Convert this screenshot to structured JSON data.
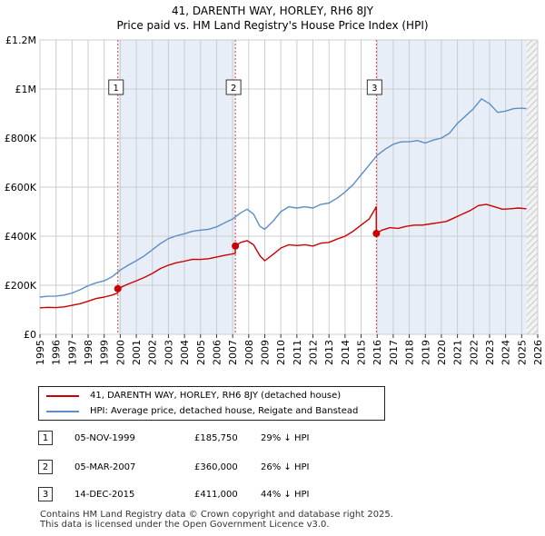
{
  "header": {
    "title_line1": "41, DARENTH WAY, HORLEY, RH6 8JY",
    "title_line2": "Price paid vs. HM Land Registry's House Price Index (HPI)"
  },
  "colors": {
    "property": "#cc0000",
    "hpi": "#5b8ec7",
    "shade": "#e8eef8",
    "grid": "#cccccc",
    "marker_line": "#dd4444"
  },
  "legend": {
    "property_label": "41, DARENTH WAY, HORLEY, RH6 8JY (detached house)",
    "hpi_label": "HPI: Average price, detached house, Reigate and Banstead"
  },
  "transactions": [
    {
      "num": "1",
      "date": "05-NOV-1999",
      "price": "£185,750",
      "hpi_diff": "29% ↓ HPI"
    },
    {
      "num": "2",
      "date": "05-MAR-2007",
      "price": "£360,000",
      "hpi_diff": "26% ↓ HPI"
    },
    {
      "num": "3",
      "date": "14-DEC-2015",
      "price": "£411,000",
      "hpi_diff": "44% ↓ HPI"
    }
  ],
  "footer": {
    "line1": "Contains HM Land Registry data © Crown copyright and database right 2025.",
    "line2": "This data is licensed under the Open Government Licence v3.0."
  },
  "chart_data": {
    "type": "line",
    "title": "Price paid vs. HM Land Registry's House Price Index (HPI)",
    "xlabel": "",
    "ylabel": "",
    "xlim": [
      1995,
      2026
    ],
    "ylim": [
      0,
      1200000
    ],
    "xticks": [
      "1995",
      "1996",
      "1997",
      "1998",
      "1999",
      "2000",
      "2001",
      "2002",
      "2003",
      "2004",
      "2005",
      "2006",
      "2007",
      "2008",
      "2009",
      "2010",
      "2011",
      "2012",
      "2013",
      "2014",
      "2015",
      "2016",
      "2017",
      "2018",
      "2019",
      "2020",
      "2021",
      "2022",
      "2023",
      "2024",
      "2025",
      "2026"
    ],
    "yticks": [
      {
        "value": 0,
        "label": "£0"
      },
      {
        "value": 200000,
        "label": "£200K"
      },
      {
        "value": 400000,
        "label": "£400K"
      },
      {
        "value": 600000,
        "label": "£600K"
      },
      {
        "value": 800000,
        "label": "£800K"
      },
      {
        "value": 1000000,
        "label": "£1M"
      },
      {
        "value": 1200000,
        "label": "£1.2M"
      }
    ],
    "grid": true,
    "shaded_periods": [
      [
        1999.85,
        2007.17
      ],
      [
        2015.95,
        2025.3
      ]
    ],
    "hatched_from": 2025.3,
    "sales": [
      {
        "label": "1",
        "x": 1999.85,
        "price": 185750
      },
      {
        "label": "2",
        "x": 2007.17,
        "price": 360000
      },
      {
        "label": "3",
        "x": 2015.95,
        "price": 411000
      }
    ],
    "series": [
      {
        "name": "41, DARENTH WAY, HORLEY, RH6 8JY (detached house)",
        "points": [
          [
            1995.0,
            108000
          ],
          [
            1995.5,
            110000
          ],
          [
            1996.0,
            109000
          ],
          [
            1996.5,
            112000
          ],
          [
            1997.0,
            118000
          ],
          [
            1997.5,
            125000
          ],
          [
            1998.0,
            135000
          ],
          [
            1998.5,
            146000
          ],
          [
            1999.0,
            152000
          ],
          [
            1999.5,
            160000
          ],
          [
            1999.84,
            168000
          ],
          [
            1999.85,
            185750
          ],
          [
            2000.5,
            205000
          ],
          [
            2001.0,
            218000
          ],
          [
            2001.5,
            232000
          ],
          [
            2002.0,
            248000
          ],
          [
            2002.5,
            268000
          ],
          [
            2003.0,
            282000
          ],
          [
            2003.5,
            292000
          ],
          [
            2004.0,
            298000
          ],
          [
            2004.5,
            306000
          ],
          [
            2005.0,
            305000
          ],
          [
            2005.5,
            308000
          ],
          [
            2006.0,
            315000
          ],
          [
            2006.5,
            322000
          ],
          [
            2007.16,
            330000
          ],
          [
            2007.17,
            360000
          ],
          [
            2007.5,
            375000
          ],
          [
            2007.9,
            382000
          ],
          [
            2008.3,
            365000
          ],
          [
            2008.7,
            320000
          ],
          [
            2009.0,
            300000
          ],
          [
            2009.5,
            325000
          ],
          [
            2010.0,
            352000
          ],
          [
            2010.5,
            365000
          ],
          [
            2011.0,
            362000
          ],
          [
            2011.5,
            365000
          ],
          [
            2012.0,
            360000
          ],
          [
            2012.5,
            372000
          ],
          [
            2013.0,
            375000
          ],
          [
            2013.5,
            388000
          ],
          [
            2014.0,
            400000
          ],
          [
            2014.5,
            420000
          ],
          [
            2015.0,
            445000
          ],
          [
            2015.5,
            470000
          ],
          [
            2015.9,
            515000
          ],
          [
            2015.94,
            520000
          ],
          [
            2015.95,
            411000
          ],
          [
            2016.3,
            425000
          ],
          [
            2016.8,
            435000
          ],
          [
            2017.3,
            432000
          ],
          [
            2017.8,
            440000
          ],
          [
            2018.3,
            445000
          ],
          [
            2018.8,
            445000
          ],
          [
            2019.3,
            450000
          ],
          [
            2019.8,
            455000
          ],
          [
            2020.3,
            460000
          ],
          [
            2020.8,
            475000
          ],
          [
            2021.3,
            490000
          ],
          [
            2021.8,
            505000
          ],
          [
            2022.3,
            525000
          ],
          [
            2022.8,
            530000
          ],
          [
            2023.3,
            520000
          ],
          [
            2023.8,
            510000
          ],
          [
            2024.3,
            512000
          ],
          [
            2024.8,
            515000
          ],
          [
            2025.3,
            512000
          ]
        ]
      },
      {
        "name": "HPI: Average price, detached house, Reigate and Banstead",
        "points": [
          [
            1995.0,
            152000
          ],
          [
            1995.5,
            155000
          ],
          [
            1996.0,
            156000
          ],
          [
            1996.5,
            160000
          ],
          [
            1997.0,
            168000
          ],
          [
            1997.5,
            182000
          ],
          [
            1998.0,
            198000
          ],
          [
            1998.5,
            210000
          ],
          [
            1999.0,
            218000
          ],
          [
            1999.5,
            235000
          ],
          [
            2000.0,
            262000
          ],
          [
            2000.5,
            282000
          ],
          [
            2001.0,
            300000
          ],
          [
            2001.5,
            320000
          ],
          [
            2002.0,
            345000
          ],
          [
            2002.5,
            370000
          ],
          [
            2003.0,
            390000
          ],
          [
            2003.5,
            402000
          ],
          [
            2004.0,
            410000
          ],
          [
            2004.5,
            420000
          ],
          [
            2005.0,
            425000
          ],
          [
            2005.5,
            428000
          ],
          [
            2006.0,
            438000
          ],
          [
            2006.5,
            455000
          ],
          [
            2007.0,
            470000
          ],
          [
            2007.5,
            495000
          ],
          [
            2007.9,
            510000
          ],
          [
            2008.3,
            490000
          ],
          [
            2008.7,
            440000
          ],
          [
            2009.0,
            428000
          ],
          [
            2009.5,
            460000
          ],
          [
            2010.0,
            500000
          ],
          [
            2010.5,
            520000
          ],
          [
            2011.0,
            515000
          ],
          [
            2011.5,
            520000
          ],
          [
            2012.0,
            515000
          ],
          [
            2012.5,
            530000
          ],
          [
            2013.0,
            535000
          ],
          [
            2013.5,
            555000
          ],
          [
            2014.0,
            580000
          ],
          [
            2014.5,
            610000
          ],
          [
            2015.0,
            650000
          ],
          [
            2015.5,
            690000
          ],
          [
            2016.0,
            730000
          ],
          [
            2016.5,
            755000
          ],
          [
            2017.0,
            775000
          ],
          [
            2017.5,
            785000
          ],
          [
            2018.0,
            785000
          ],
          [
            2018.5,
            790000
          ],
          [
            2019.0,
            780000
          ],
          [
            2019.5,
            792000
          ],
          [
            2020.0,
            800000
          ],
          [
            2020.5,
            820000
          ],
          [
            2021.0,
            860000
          ],
          [
            2021.5,
            890000
          ],
          [
            2022.0,
            920000
          ],
          [
            2022.5,
            960000
          ],
          [
            2023.0,
            940000
          ],
          [
            2023.5,
            905000
          ],
          [
            2024.0,
            910000
          ],
          [
            2024.5,
            920000
          ],
          [
            2025.0,
            922000
          ],
          [
            2025.3,
            920000
          ]
        ]
      }
    ]
  }
}
